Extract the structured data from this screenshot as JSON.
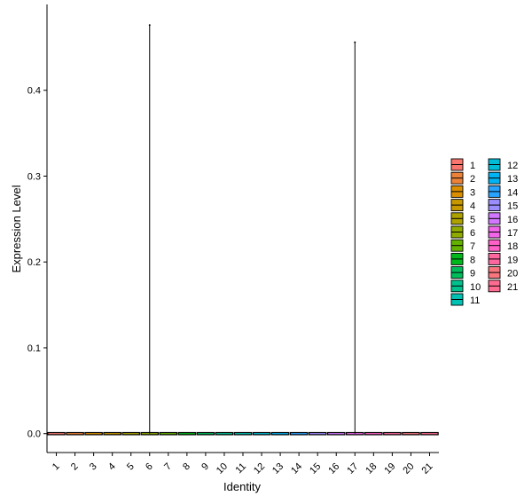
{
  "chart_data": {
    "type": "violin",
    "xlabel": "Identity",
    "ylabel": "Expression Level",
    "categories": [
      "1",
      "2",
      "3",
      "4",
      "5",
      "6",
      "7",
      "8",
      "9",
      "10",
      "11",
      "12",
      "13",
      "14",
      "15",
      "16",
      "17",
      "18",
      "19",
      "20",
      "21"
    ],
    "median": [
      0,
      0,
      0,
      0,
      0,
      0,
      0,
      0,
      0,
      0,
      0,
      0,
      0,
      0,
      0,
      0,
      0,
      0,
      0,
      0,
      0
    ],
    "max": [
      0,
      0,
      0,
      0,
      0,
      0.476,
      0,
      0,
      0,
      0,
      0,
      0,
      0,
      0,
      0,
      0,
      0.456,
      0,
      0,
      0,
      0
    ],
    "y_ticks": [
      "0.0",
      "0.1",
      "0.2",
      "0.3",
      "0.4"
    ],
    "y_tick_values": [
      0,
      0.1,
      0.2,
      0.3,
      0.4
    ],
    "ylim": [
      -0.022,
      0.5
    ],
    "grid": false,
    "legend_placement": "right",
    "legend_columns": 2,
    "colors": [
      "#F8766D",
      "#EC8239",
      "#DB8E00",
      "#C79800",
      "#AEA200",
      "#8FAA00",
      "#64B200",
      "#00B81B",
      "#00BD5C",
      "#00C08D",
      "#00C1B2",
      "#00BCD6",
      "#00B3F2",
      "#29A3FF",
      "#9C8DFF",
      "#D277FF",
      "#F166E8",
      "#FF61C7",
      "#FF689E",
      "#F8767D",
      "#FF6C91"
    ]
  }
}
